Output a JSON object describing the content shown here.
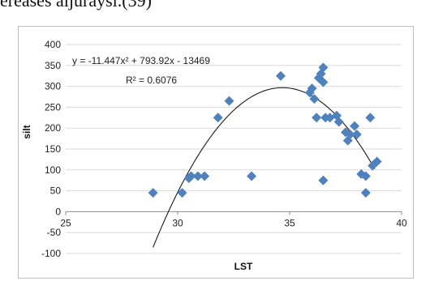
{
  "caption": "ereases aijuraysi.(39)",
  "chart_data": {
    "type": "scatter",
    "xlabel": "LST",
    "ylabel": "silt",
    "xlim": [
      25,
      40
    ],
    "ylim": [
      -100,
      400
    ],
    "xticks": [
      25,
      30,
      35,
      40
    ],
    "yticks": [
      400,
      350,
      300,
      250,
      200,
      150,
      100,
      50,
      0,
      -50,
      -100
    ],
    "grid": true,
    "marker": "diamond",
    "marker_color": "#4f81bd",
    "trendline": {
      "type": "polynomial",
      "order": 2,
      "coefficients": [
        -11.447,
        793.92,
        -13469
      ],
      "x_range": [
        28.9,
        38.8
      ],
      "color": "#1a1a1a"
    },
    "equation_label": "y = -11.447x² + 793.92x - 13469",
    "r2_label": "R² = 0.6076",
    "points": [
      {
        "x": 28.9,
        "y": 45
      },
      {
        "x": 30.2,
        "y": 45
      },
      {
        "x": 30.5,
        "y": 80
      },
      {
        "x": 30.6,
        "y": 85
      },
      {
        "x": 30.9,
        "y": 85
      },
      {
        "x": 31.2,
        "y": 85
      },
      {
        "x": 31.8,
        "y": 225
      },
      {
        "x": 32.3,
        "y": 265
      },
      {
        "x": 33.3,
        "y": 85
      },
      {
        "x": 34.6,
        "y": 325
      },
      {
        "x": 35.9,
        "y": 285
      },
      {
        "x": 36.0,
        "y": 295
      },
      {
        "x": 36.1,
        "y": 270
      },
      {
        "x": 36.2,
        "y": 225
      },
      {
        "x": 36.3,
        "y": 320
      },
      {
        "x": 36.4,
        "y": 330
      },
      {
        "x": 36.5,
        "y": 345
      },
      {
        "x": 36.5,
        "y": 310
      },
      {
        "x": 36.6,
        "y": 225
      },
      {
        "x": 36.5,
        "y": 75
      },
      {
        "x": 36.8,
        "y": 225
      },
      {
        "x": 37.1,
        "y": 230
      },
      {
        "x": 37.2,
        "y": 215
      },
      {
        "x": 37.5,
        "y": 190
      },
      {
        "x": 37.6,
        "y": 170
      },
      {
        "x": 37.7,
        "y": 185
      },
      {
        "x": 37.9,
        "y": 205
      },
      {
        "x": 38.0,
        "y": 185
      },
      {
        "x": 38.2,
        "y": 90
      },
      {
        "x": 38.4,
        "y": 85
      },
      {
        "x": 38.4,
        "y": 45
      },
      {
        "x": 38.6,
        "y": 225
      },
      {
        "x": 38.7,
        "y": 110
      },
      {
        "x": 38.9,
        "y": 120
      }
    ]
  }
}
